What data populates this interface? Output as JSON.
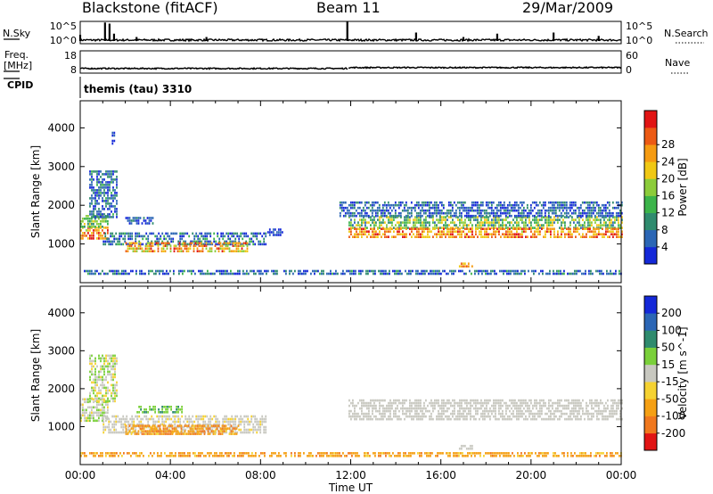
{
  "header": {
    "station": "Blackstone (fitACF)",
    "beam": "Beam 11",
    "date": "29/Mar/2009"
  },
  "strip_labels": {
    "nsky": "N.Sky",
    "nsky_ticks": [
      "10^5",
      "10^0"
    ],
    "nsearch": "N.Search",
    "nsearch_ticks": [
      "10^5",
      "10^0"
    ],
    "freq_line1": "Freq.",
    "freq_line2": "[MHz]",
    "freq_ticks": [
      "18",
      "8"
    ],
    "nave": "Nave",
    "nave_ticks": [
      "60",
      "0"
    ],
    "cpid": "CPID",
    "cpid_value": "themis (tau) 3310"
  },
  "chart_data": [
    {
      "type": "line",
      "name": "noise",
      "xlabel": "",
      "ylabel": "N.Sky",
      "x_range_hours": [
        0,
        24
      ],
      "scale": "log",
      "baseline_level": 0.12,
      "spikes": [
        {
          "t": 0.0,
          "h": 0.4
        },
        {
          "t": 1.1,
          "h": 0.95
        },
        {
          "t": 1.3,
          "h": 0.9
        },
        {
          "t": 1.5,
          "h": 0.45
        },
        {
          "t": 2.5,
          "h": 0.3
        },
        {
          "t": 5.6,
          "h": 0.3
        },
        {
          "t": 11.85,
          "h": 1.0
        },
        {
          "t": 14.9,
          "h": 0.5
        },
        {
          "t": 17.0,
          "h": 0.3
        },
        {
          "t": 18.5,
          "h": 0.45
        },
        {
          "t": 21.0,
          "h": 0.5
        },
        {
          "t": 23.0,
          "h": 0.35
        }
      ]
    },
    {
      "type": "line",
      "name": "frequency",
      "ylabel": "Freq. [MHz]",
      "ylim_freq": [
        8,
        18
      ],
      "ylim_nave": [
        0,
        60
      ],
      "x_range_hours": [
        0,
        24
      ],
      "freq_segments": [
        {
          "t0": 0,
          "t1": 11.9,
          "level": 0.18
        },
        {
          "t0": 11.9,
          "t1": 24,
          "level": 0.22
        }
      ]
    },
    {
      "type": "heatmap",
      "name": "power",
      "xlabel": "",
      "ylabel": "Slant Range [km]",
      "x_range_hours": [
        0,
        24
      ],
      "ylim": [
        0,
        4700
      ],
      "y_ticks": [
        1000,
        2000,
        3000,
        4000
      ],
      "colorbar_label": "Power [dB]",
      "colorbar_ticks": [
        "4",
        "8",
        "12",
        "16",
        "20",
        "24",
        "28"
      ],
      "colorbar_colors": [
        "#1428d8",
        "#2b66b5",
        "#2f8b6e",
        "#3cb44a",
        "#8ccc3a",
        "#f0c814",
        "#f59b12",
        "#ec5a14",
        "#e11414"
      ],
      "regions": [
        {
          "t0": 0.0,
          "t1": 1.2,
          "r0": 1150,
          "r1": 1450,
          "v": [
            0.55,
            0.95
          ]
        },
        {
          "t0": 0.0,
          "t1": 1.2,
          "r0": 1450,
          "r1": 1750,
          "v": [
            0.25,
            0.6
          ]
        },
        {
          "t0": 0.4,
          "t1": 1.6,
          "r0": 1700,
          "r1": 2900,
          "v": [
            0.0,
            0.35
          ]
        },
        {
          "t0": 1.0,
          "t1": 8.2,
          "r0": 1000,
          "r1": 1300,
          "v": [
            0.0,
            0.4
          ]
        },
        {
          "t0": 2.0,
          "t1": 7.4,
          "r0": 780,
          "r1": 1050,
          "v": [
            0.45,
            0.95
          ]
        },
        {
          "t0": 2.0,
          "t1": 3.2,
          "r0": 1500,
          "r1": 1700,
          "v": [
            0.0,
            0.3
          ]
        },
        {
          "t0": 0.0,
          "t1": 24,
          "r0": 230,
          "r1": 330,
          "v": [
            0.0,
            0.35
          ]
        },
        {
          "t0": 11.9,
          "t1": 24,
          "r0": 1420,
          "r1": 1720,
          "v": [
            0.2,
            0.65
          ]
        },
        {
          "t0": 11.9,
          "t1": 24,
          "r0": 1150,
          "r1": 1420,
          "v": [
            0.55,
            0.95
          ]
        },
        {
          "t0": 11.5,
          "t1": 24,
          "r0": 1750,
          "r1": 2100,
          "v": [
            0.0,
            0.3
          ]
        },
        {
          "t0": 16.8,
          "t1": 17.4,
          "r0": 420,
          "r1": 520,
          "v": [
            0.6,
            0.8
          ]
        },
        {
          "t0": 8.3,
          "t1": 9.0,
          "r0": 1200,
          "r1": 1400,
          "v": [
            0.0,
            0.2
          ]
        },
        {
          "t0": 1.4,
          "t1": 1.5,
          "r0": 3600,
          "r1": 3900,
          "v": [
            0.0,
            0.2
          ]
        }
      ]
    },
    {
      "type": "heatmap",
      "name": "velocity",
      "xlabel": "Time UT",
      "ylabel": "Slant Range [km]",
      "x_range_hours": [
        0,
        24
      ],
      "ylim": [
        0,
        4700
      ],
      "y_ticks": [
        1000,
        2000,
        3000,
        4000
      ],
      "x_ticks": [
        "00:00",
        "04:00",
        "08:00",
        "12:00",
        "16:00",
        "20:00",
        "00:00"
      ],
      "colorbar_label": "Velocity [m s^-1]",
      "colorbar_ticks": [
        "-200",
        "-100",
        "-50",
        "-15",
        "15",
        "50",
        "100",
        "200"
      ],
      "colorbar_colors": [
        "#e11414",
        "#f0781e",
        "#f5a014",
        "#f5d232",
        "#c8c8c0",
        "#7ad03a",
        "#2f8b6e",
        "#2b66b5",
        "#1428d8"
      ],
      "regions": [
        {
          "t0": 0.0,
          "t1": 1.2,
          "r0": 1150,
          "r1": 1750,
          "v": [
            0.4,
            0.6
          ]
        },
        {
          "t0": 0.4,
          "t1": 1.6,
          "r0": 1700,
          "r1": 2900,
          "v": [
            0.35,
            0.65
          ]
        },
        {
          "t0": 1.0,
          "t1": 8.2,
          "r0": 850,
          "r1": 1300,
          "v": [
            0.42,
            0.55
          ]
        },
        {
          "t0": 2.0,
          "t1": 7.0,
          "r0": 800,
          "r1": 1050,
          "v": [
            0.15,
            0.35
          ]
        },
        {
          "t0": 0.0,
          "t1": 24,
          "r0": 230,
          "r1": 330,
          "v": [
            0.2,
            0.35
          ]
        },
        {
          "t0": 11.9,
          "t1": 24,
          "r0": 1200,
          "r1": 1720,
          "v": [
            0.45,
            0.55
          ]
        },
        {
          "t0": 16.8,
          "t1": 17.4,
          "r0": 420,
          "r1": 520,
          "v": [
            0.45,
            0.55
          ]
        },
        {
          "t0": 2.5,
          "t1": 4.5,
          "r0": 1350,
          "r1": 1550,
          "v": [
            0.6,
            0.7
          ]
        }
      ]
    }
  ]
}
